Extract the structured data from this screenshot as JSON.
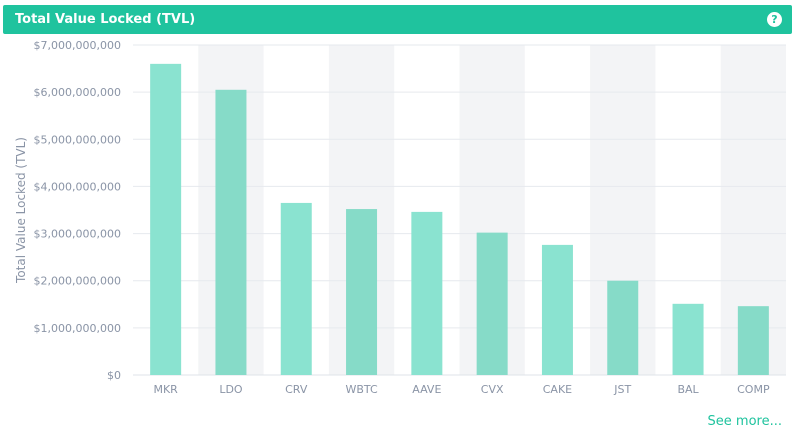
{
  "header": {
    "title": "Total Value Locked (TVL)",
    "help_icon": "question-circle-icon"
  },
  "footer": {
    "see_more_label": "See more..."
  },
  "colors": {
    "header_bg": "#1fc39e",
    "bar": "#8ae3d0",
    "bar_alt": "#86dbc8",
    "band": "#f3f4f6",
    "tick_text": "#8a94a6",
    "accent": "#1fc39e"
  },
  "chart_data": {
    "type": "bar",
    "title": "",
    "xlabel": "",
    "ylabel": "Total Value Locked (TVL)",
    "categories": [
      "MKR",
      "LDO",
      "CRV",
      "WBTC",
      "AAVE",
      "CVX",
      "CAKE",
      "JST",
      "BAL",
      "COMP"
    ],
    "values": [
      6600000000,
      6050000000,
      3650000000,
      3520000000,
      3460000000,
      3020000000,
      2760000000,
      2000000000,
      1510000000,
      1460000000
    ],
    "ylim": [
      0,
      7000000000
    ],
    "yticks": [
      {
        "value": 0,
        "label": "$0"
      },
      {
        "value": 1000000000,
        "label": "$1,000,000,000"
      },
      {
        "value": 2000000000,
        "label": "$2,000,000,000"
      },
      {
        "value": 3000000000,
        "label": "$3,000,000,000"
      },
      {
        "value": 4000000000,
        "label": "$4,000,000,000"
      },
      {
        "value": 5000000000,
        "label": "$5,000,000,000"
      },
      {
        "value": 6000000000,
        "label": "$6,000,000,000"
      },
      {
        "value": 7000000000,
        "label": "$7,000,000,000"
      }
    ],
    "grid": true,
    "legend": "none"
  }
}
